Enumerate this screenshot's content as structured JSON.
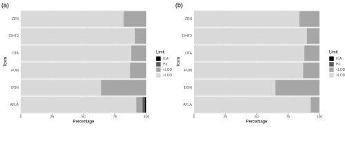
{
  "chart_data": [
    {
      "type": "bar",
      "orientation": "horizontal",
      "stacked": true,
      "panel_label": "(a)",
      "xlabel": "Percentage",
      "ylabel": "Toxin",
      "legend_title": "Limit",
      "categories": [
        "ZEN",
        "T2HT2",
        "OTA",
        "FUM",
        "DON",
        "AFLA"
      ],
      "series": [
        {
          "name": ">LOD",
          "color": "#d9d9d9",
          "values": [
            82,
            91,
            88,
            87,
            64,
            92
          ]
        },
        {
          "name": "<LOD",
          "color": "#a6a6a6",
          "values": [
            18,
            9,
            12,
            13,
            36,
            5
          ]
        },
        {
          "name": "H.L",
          "color": "#595959",
          "values": [
            0,
            0,
            0,
            0,
            0,
            2
          ]
        },
        {
          "name": "H.A",
          "color": "#000000",
          "values": [
            0,
            0,
            0,
            0,
            0,
            1
          ]
        }
      ],
      "xlim": [
        0,
        100
      ],
      "xticks": [
        0,
        25,
        50,
        75,
        100
      ],
      "grid": true
    },
    {
      "type": "bar",
      "orientation": "horizontal",
      "stacked": true,
      "panel_label": "(b)",
      "xlabel": "Percentage",
      "ylabel": "Toxin",
      "legend_title": "Limit",
      "categories": [
        "ZEN",
        "T2HT2",
        "OTA",
        "FUM",
        "DON",
        "AFLA"
      ],
      "series": [
        {
          "name": ">LOD",
          "color": "#d9d9d9",
          "values": [
            84,
            90,
            88,
            87,
            65,
            93
          ]
        },
        {
          "name": "<LOD",
          "color": "#a6a6a6",
          "values": [
            16,
            10,
            12,
            13,
            35,
            7
          ]
        },
        {
          "name": "H.L",
          "color": "#595959",
          "values": [
            0,
            0,
            0,
            0,
            0,
            0
          ]
        },
        {
          "name": "H.A",
          "color": "#000000",
          "values": [
            0,
            0,
            0,
            0,
            0,
            0
          ]
        }
      ],
      "xlim": [
        0,
        100
      ],
      "xticks": [
        0,
        25,
        50,
        75,
        100
      ],
      "grid": true
    }
  ]
}
